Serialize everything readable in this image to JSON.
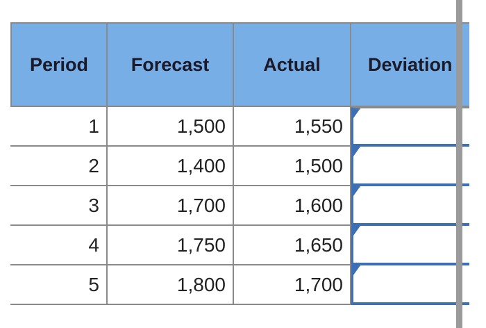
{
  "table": {
    "header": [
      "Period",
      "Forecast",
      "Actual",
      "Deviation"
    ],
    "rows": [
      [
        "1",
        "1,500",
        "1,550"
      ],
      [
        "2",
        "1,400",
        "1,500"
      ],
      [
        "3",
        "1,700",
        "1,600"
      ],
      [
        "4",
        "1,750",
        "1,650"
      ],
      [
        "5",
        "1,800",
        "1,700"
      ]
    ]
  }
}
